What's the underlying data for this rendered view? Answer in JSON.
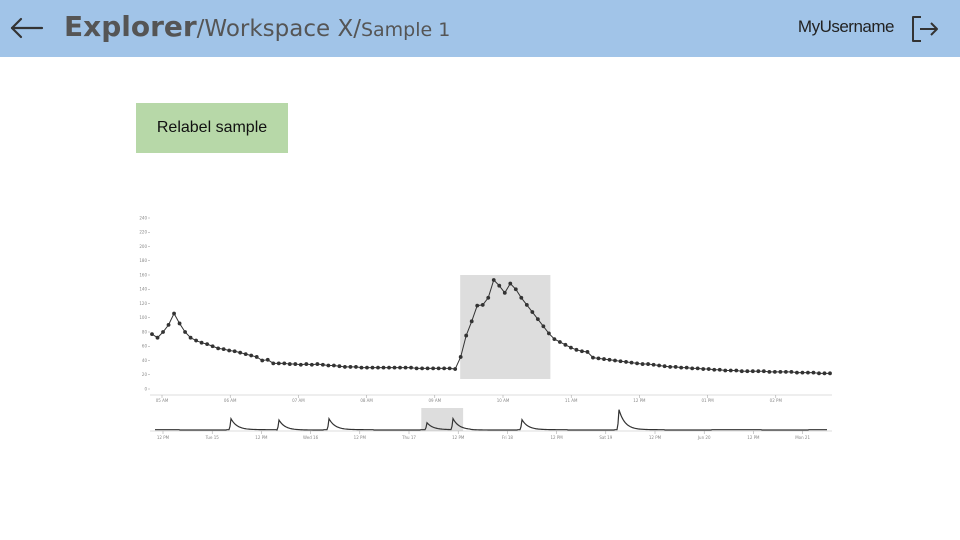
{
  "header": {
    "breadcrumbs": [
      "Explorer",
      "Workspace X",
      "Sample 1"
    ],
    "separator": "/",
    "username": "MyUsername"
  },
  "actions": {
    "relabel_label": "Relabel sample"
  },
  "icons": {
    "back": "arrow-left-icon",
    "logout": "logout-icon"
  },
  "colors": {
    "header_bg": "#a1c4e8",
    "button_bg": "#b7d8a8",
    "selection": "#dddddd",
    "series": "#333333"
  },
  "chart_data": {
    "type": "line",
    "main": {
      "ylim": [
        0,
        240
      ],
      "yticks": [
        0,
        20,
        40,
        60,
        80,
        100,
        120,
        140,
        160,
        180,
        200,
        220,
        240
      ],
      "xticks": [
        "05 AM",
        "06 AM",
        "07 AM",
        "08 AM",
        "09 AM",
        "10 AM",
        "11 AM",
        "12 PM",
        "01 PM",
        "02 PM"
      ],
      "values": [
        77,
        72,
        80,
        90,
        106,
        92,
        80,
        72,
        68,
        65,
        63,
        60,
        57,
        56,
        54,
        53,
        51,
        49,
        47,
        45,
        40,
        41,
        36,
        36,
        36,
        35,
        35,
        34,
        35,
        34,
        35,
        34,
        33,
        33,
        32,
        31,
        31,
        31,
        30,
        30,
        30,
        30,
        30,
        30,
        30,
        30,
        30,
        30,
        29,
        29,
        29,
        29,
        29,
        29,
        29,
        28,
        45,
        75,
        95,
        117,
        118,
        128,
        153,
        145,
        135,
        148,
        140,
        128,
        118,
        108,
        98,
        88,
        78,
        70,
        66,
        62,
        58,
        55,
        53,
        52,
        44,
        43,
        42,
        41,
        40,
        39,
        38,
        37,
        36,
        35,
        35,
        34,
        33,
        32,
        31,
        31,
        30,
        30,
        29,
        29,
        28,
        28,
        27,
        27,
        26,
        26,
        26,
        25,
        25,
        25,
        25,
        25,
        24,
        24,
        24,
        24,
        24,
        23,
        23,
        23,
        23,
        22,
        22,
        22
      ],
      "selection_index_range": [
        56,
        72
      ]
    },
    "overview": {
      "xticks": [
        "12 PM",
        "Tue 15",
        "12 PM",
        "Wed 16",
        "12 PM",
        "Thu 17",
        "12 PM",
        "Fri 18",
        "12 PM",
        "Sat 19",
        "12 PM",
        "Jun 20",
        "12 PM",
        "Mon 21"
      ],
      "selection_tick_range": [
        5.25,
        6.1
      ]
    }
  }
}
